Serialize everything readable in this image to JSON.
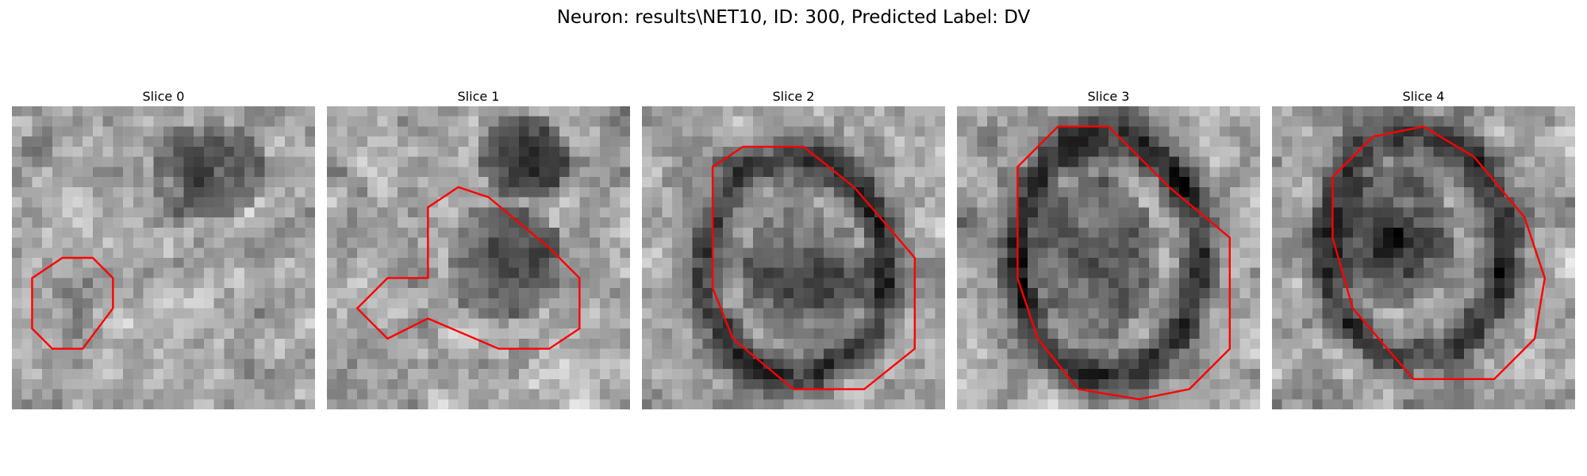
{
  "figure": {
    "title": "Neuron: results\\NET10, ID: 300, Predicted Label: DV",
    "contour_color": "#ff0000",
    "colormap": "gray",
    "grid_size": 30
  },
  "panels": [
    {
      "label": "Slice 0",
      "seed": 11,
      "blobs": [
        {
          "cx": 19.5,
          "cy": 6.5,
          "rx": 6.0,
          "ry": 5.0,
          "depth": 0.45
        },
        {
          "cx": 5.0,
          "cy": 19.0,
          "rx": 3.5,
          "ry": 4.0,
          "depth": 0.2
        }
      ],
      "contour": [
        [
          2,
          17
        ],
        [
          2,
          22
        ],
        [
          4,
          24
        ],
        [
          7,
          24
        ],
        [
          10,
          20
        ],
        [
          10,
          17
        ],
        [
          8,
          15
        ],
        [
          5,
          15
        ]
      ]
    },
    {
      "label": "Slice 1",
      "seed": 23,
      "blobs": [
        {
          "cx": 19.5,
          "cy": 5.0,
          "rx": 4.5,
          "ry": 4.0,
          "depth": 0.55
        },
        {
          "cx": 17.5,
          "cy": 15.5,
          "rx": 6.0,
          "ry": 6.0,
          "depth": 0.4
        }
      ],
      "contour": [
        [
          10,
          10
        ],
        [
          13,
          8
        ],
        [
          16,
          9
        ],
        [
          22,
          14
        ],
        [
          25,
          17
        ],
        [
          25,
          22
        ],
        [
          22,
          24
        ],
        [
          17,
          24
        ],
        [
          10,
          21
        ],
        [
          6,
          23
        ],
        [
          3,
          20
        ],
        [
          6,
          17
        ],
        [
          10,
          17
        ]
      ]
    },
    {
      "label": "Slice 2",
      "seed": 37,
      "blobs": [
        {
          "cx": 15.0,
          "cy": 16.0,
          "rx": 9.0,
          "ry": 11.0,
          "ring": true,
          "depth": 0.45
        },
        {
          "cx": 16.0,
          "cy": 17.0,
          "rx": 6.0,
          "ry": 7.0,
          "depth": 0.4
        }
      ],
      "contour": [
        [
          7,
          6
        ],
        [
          10,
          4
        ],
        [
          16,
          4
        ],
        [
          21,
          8
        ],
        [
          27,
          15
        ],
        [
          27,
          24
        ],
        [
          22,
          28
        ],
        [
          15,
          28
        ],
        [
          9,
          23
        ],
        [
          7,
          18
        ]
      ]
    },
    {
      "label": "Slice 3",
      "seed": 51,
      "blobs": [
        {
          "cx": 15.0,
          "cy": 15.0,
          "rx": 9.0,
          "ry": 12.0,
          "ring": true,
          "depth": 0.5
        },
        {
          "cx": 14.0,
          "cy": 15.0,
          "rx": 6.0,
          "ry": 8.0,
          "depth": 0.35
        }
      ],
      "contour": [
        [
          6,
          6
        ],
        [
          10,
          2
        ],
        [
          15,
          2
        ],
        [
          21,
          8
        ],
        [
          27,
          13
        ],
        [
          27,
          24
        ],
        [
          23,
          28
        ],
        [
          18,
          29
        ],
        [
          12,
          28
        ],
        [
          8,
          23
        ],
        [
          6,
          17
        ]
      ]
    },
    {
      "label": "Slice 4",
      "seed": 67,
      "blobs": [
        {
          "cx": 14.0,
          "cy": 14.0,
          "rx": 9.0,
          "ry": 11.0,
          "ring": true,
          "depth": 0.45
        },
        {
          "cx": 12.0,
          "cy": 13.0,
          "rx": 6.0,
          "ry": 7.0,
          "depth": 0.45
        }
      ],
      "contour": [
        [
          6,
          7
        ],
        [
          10,
          3
        ],
        [
          15,
          2
        ],
        [
          20,
          5
        ],
        [
          25,
          11
        ],
        [
          27,
          17
        ],
        [
          26,
          23
        ],
        [
          22,
          27
        ],
        [
          14,
          27
        ],
        [
          8,
          20
        ],
        [
          6,
          13
        ]
      ]
    }
  ]
}
